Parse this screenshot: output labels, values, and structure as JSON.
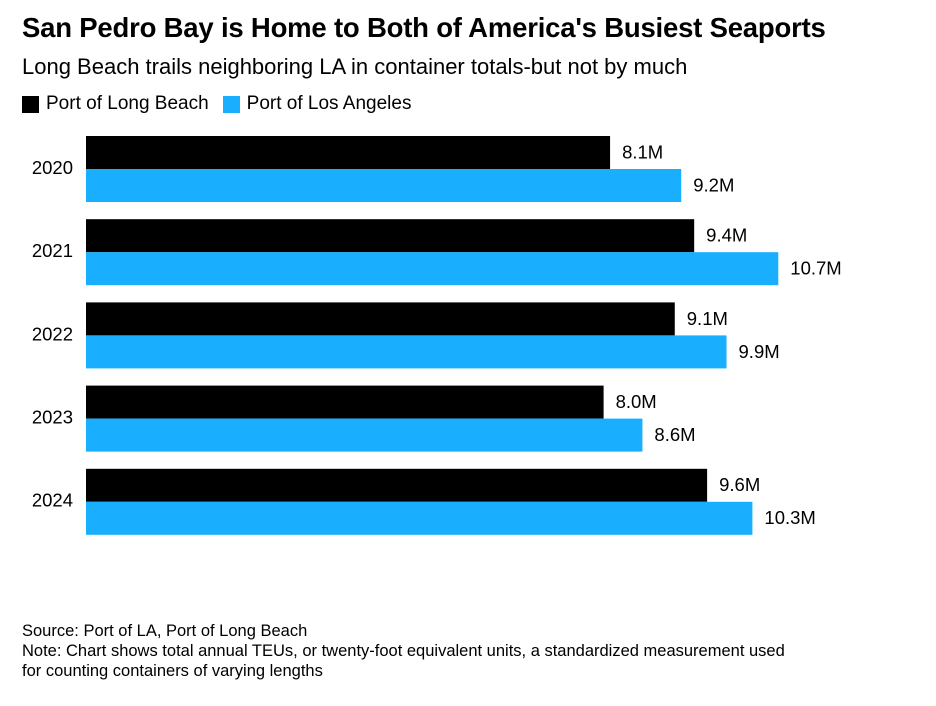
{
  "chart_data": {
    "type": "bar",
    "orientation": "horizontal",
    "title": "San Pedro Bay is Home to Both of America's Busiest Seaports",
    "subtitle": "Long Beach trails neighboring LA in container totals-but not by much",
    "categories": [
      "2020",
      "2021",
      "2022",
      "2023",
      "2024"
    ],
    "series": [
      {
        "name": "Port of Long Beach",
        "color": "#000000",
        "values": [
          8.1,
          9.4,
          9.1,
          8.0,
          9.6
        ],
        "labels": [
          "8.1M",
          "9.4M",
          "9.1M",
          "8.0M",
          "9.6M"
        ]
      },
      {
        "name": "Port of Los Angeles",
        "color": "#1aaeff",
        "values": [
          9.2,
          10.7,
          9.9,
          8.6,
          10.3
        ],
        "labels": [
          "9.2M",
          "10.7M",
          "9.9M",
          "8.6M",
          "10.3M"
        ]
      }
    ],
    "xlim": [
      0,
      11.0
    ],
    "grid": false,
    "legend": "top-left"
  },
  "footer": {
    "source": "Source: Port of LA, Port of Long Beach",
    "note_line1": "Note: Chart shows total annual TEUs, or twenty-foot equivalent units, a standardized measurement used",
    "note_line2": "for counting containers of varying lengths"
  }
}
